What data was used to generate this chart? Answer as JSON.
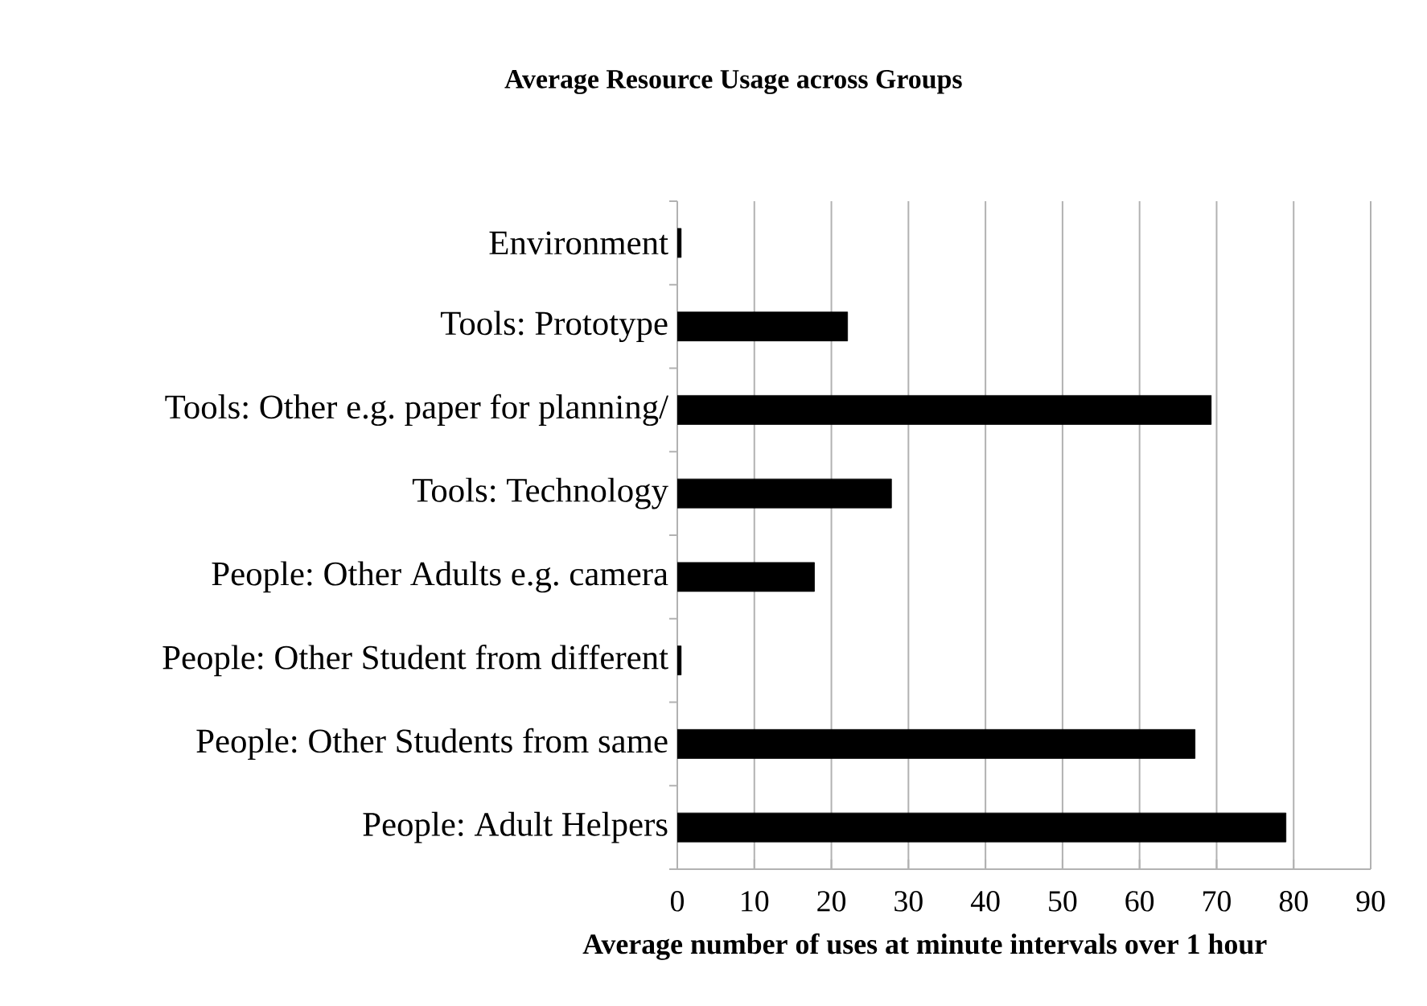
{
  "chart_data": {
    "type": "bar",
    "orientation": "horizontal",
    "title": "Average Resource Usage across Groups",
    "xlabel": "Average number of uses at minute intervals over 1 hour",
    "categories": [
      "Environment",
      "Tools: Prototype",
      "Tools: Other e.g. paper for planning/",
      "Tools: Technology",
      "People: Other Adults e.g. camera",
      "People: Other Student from different",
      "People: Other Students from same",
      "People: Adult Helpers"
    ],
    "values": [
      0.5,
      22.1,
      69.3,
      27.8,
      17.8,
      0.5,
      67.2,
      79.0
    ],
    "color": "#000000",
    "xlim": [
      0,
      90
    ],
    "xticks": [
      0,
      10,
      20,
      30,
      40,
      50,
      60,
      70,
      80,
      90
    ],
    "grid": "x"
  }
}
